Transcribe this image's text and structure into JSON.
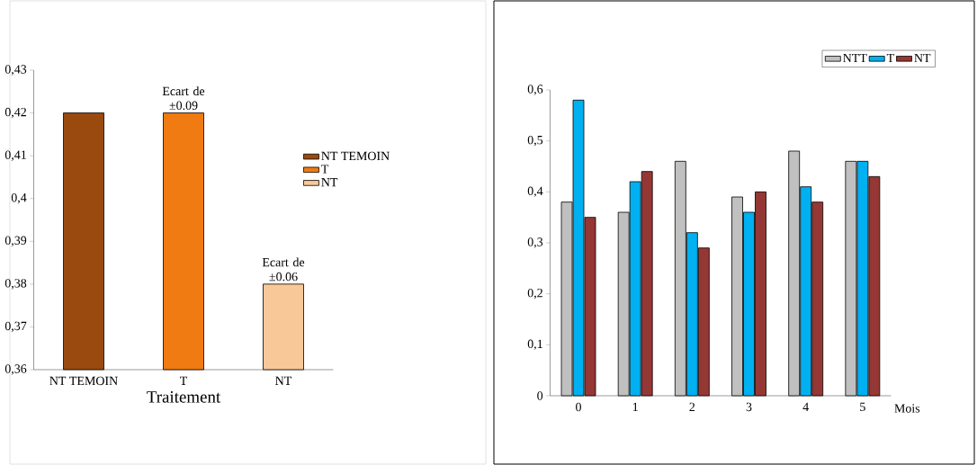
{
  "chart_data": [
    {
      "type": "bar",
      "xlabel": "Traitement",
      "categories": [
        "NT TEMOIN",
        "T",
        "NT"
      ],
      "series": [
        {
          "name": "NT TEMOIN",
          "color": "#9a4a0e",
          "values": [
            0.42,
            null,
            null
          ]
        },
        {
          "name": "T",
          "color": "#f07b12",
          "values": [
            null,
            0.42,
            null
          ]
        },
        {
          "name": "NT",
          "color": "#f8c898",
          "values": [
            null,
            null,
            0.38
          ]
        }
      ],
      "ylim": [
        0.36,
        0.43
      ],
      "yticks": [
        {
          "value": 0.36,
          "label": "0,36"
        },
        {
          "value": 0.37,
          "label": "0,37"
        },
        {
          "value": 0.38,
          "label": "0,38"
        },
        {
          "value": 0.39,
          "label": "0,39"
        },
        {
          "value": 0.4,
          "label": "0,4"
        },
        {
          "value": 0.41,
          "label": "0,41"
        },
        {
          "value": 0.42,
          "label": "0,42"
        },
        {
          "value": 0.43,
          "label": "0,43"
        }
      ],
      "legend": "right",
      "annotations": [
        {
          "text": "Ecart de ±0.09",
          "x": "T",
          "y": 0.42
        },
        {
          "text": "Ecart de ±0.06",
          "x": "NT",
          "y": 0.38
        }
      ]
    },
    {
      "type": "bar",
      "xlabel": "Mois",
      "categories": [
        "0",
        "1",
        "2",
        "3",
        "4",
        "5"
      ],
      "series": [
        {
          "name": "NTT",
          "color": "#c0c0c0",
          "values": [
            0.38,
            0.36,
            0.46,
            0.39,
            0.48,
            0.46
          ]
        },
        {
          "name": "T",
          "color": "#00b0f0",
          "values": [
            0.58,
            0.42,
            0.32,
            0.36,
            0.41,
            0.46
          ]
        },
        {
          "name": "NT",
          "color": "#953735",
          "values": [
            0.35,
            0.44,
            0.29,
            0.4,
            0.38,
            0.43
          ]
        }
      ],
      "ylim": [
        0,
        0.6
      ],
      "yticks": [
        0,
        {
          "value": 0.1,
          "label": "0,1"
        },
        {
          "value": 0.2,
          "label": "0,2"
        },
        {
          "value": 0.3,
          "label": "0,3"
        },
        {
          "value": 0.4,
          "label": "0,4"
        },
        {
          "value": 0.5,
          "label": "0,5"
        },
        {
          "value": 0.6,
          "label": "0,6"
        }
      ],
      "legend": "top right"
    }
  ]
}
